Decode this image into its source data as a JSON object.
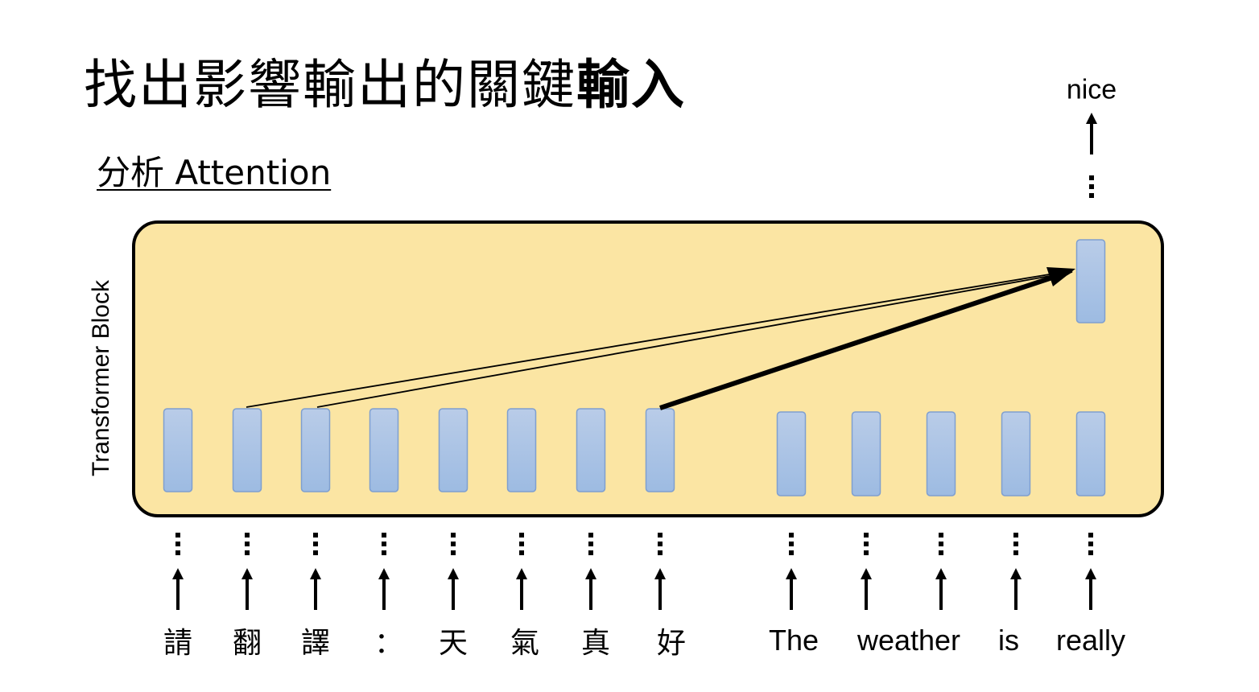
{
  "title": {
    "main": "找出影響輸出的關鍵",
    "bold": "輸入"
  },
  "subtitle": "分析 Attention",
  "block_label": "Transformer Block",
  "output_label": "nice",
  "input_tokens": [
    "請",
    "翻",
    "譯",
    "：",
    "天",
    "氣",
    "真",
    "好",
    "The",
    "weather",
    "is",
    "really"
  ],
  "colors": {
    "block_fill": "#fbe5a3",
    "block_border": "#000000",
    "vector_top": "#b9cce8",
    "vector_bottom": "#9dbbe2",
    "vector_border": "#7f9fcf"
  },
  "icons": [
    "up-arrow-icon",
    "vertical-ellipsis-icon",
    "attention-arrow-icon"
  ],
  "attention": {
    "strong_source_token": "好",
    "weak_source_tokens": [
      "翻",
      "譯"
    ],
    "target_token": "really"
  }
}
